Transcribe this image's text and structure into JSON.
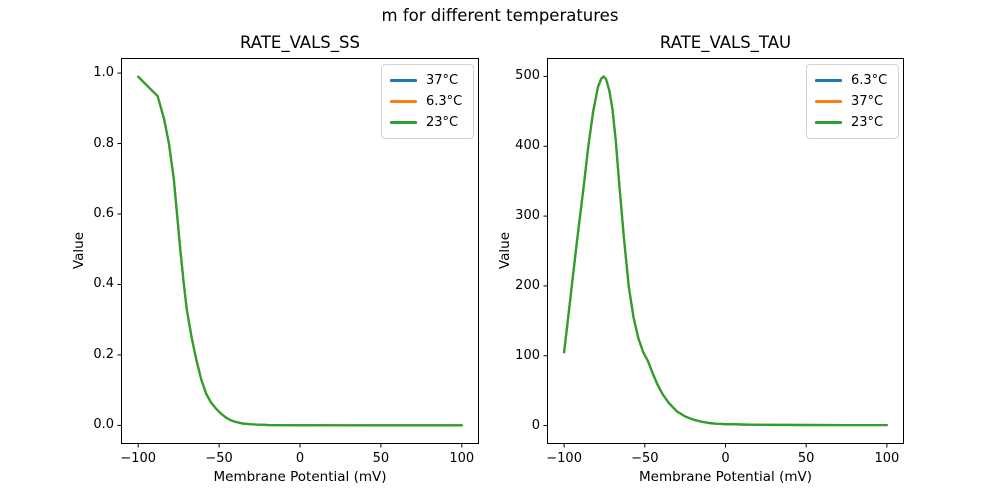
{
  "suptitle": "m for different temperatures",
  "chart_data": [
    {
      "type": "line",
      "title": "RATE_VALS_SS",
      "xlabel": "Membrane Potential (mV)",
      "ylabel": "Value",
      "xlim": [
        -110,
        110
      ],
      "ylim": [
        -0.05,
        1.04
      ],
      "grid": false,
      "legend_position": "upper right",
      "xticks": [
        -100,
        -50,
        0,
        50,
        100
      ],
      "xtick_labels": [
        "−100",
        "−50",
        "0",
        "50",
        "100"
      ],
      "yticks": [
        0.0,
        0.2,
        0.4,
        0.6,
        0.8,
        1.0
      ],
      "ytick_labels": [
        "0.0",
        "0.2",
        "0.4",
        "0.6",
        "0.8",
        "1.0"
      ],
      "note": "All three temperature curves overlap exactly; only the last-drawn series (23°C, green) is visible.",
      "x": [
        -100,
        -94,
        -88,
        -84,
        -81,
        -78,
        -76,
        -74,
        -72,
        -70,
        -67,
        -64,
        -61,
        -58,
        -55,
        -52,
        -49,
        -46,
        -43,
        -40,
        -35,
        -30,
        -25,
        -20,
        -10,
        0,
        25,
        50,
        75,
        100
      ],
      "series": [
        {
          "name": "37°C",
          "color": "#1f77b4",
          "values": [
            0.99,
            0.962,
            0.935,
            0.87,
            0.8,
            0.7,
            0.6,
            0.5,
            0.41,
            0.33,
            0.25,
            0.185,
            0.13,
            0.09,
            0.065,
            0.048,
            0.034,
            0.023,
            0.015,
            0.01,
            0.005,
            0.003,
            0.002,
            0.001,
            0.0005,
            0.0003,
            0.0002,
            0.0001,
            0.0001,
            0.0001
          ]
        },
        {
          "name": "6.3°C",
          "color": "#ff7f0e",
          "values": [
            0.99,
            0.962,
            0.935,
            0.87,
            0.8,
            0.7,
            0.6,
            0.5,
            0.41,
            0.33,
            0.25,
            0.185,
            0.13,
            0.09,
            0.065,
            0.048,
            0.034,
            0.023,
            0.015,
            0.01,
            0.005,
            0.003,
            0.002,
            0.001,
            0.0005,
            0.0003,
            0.0002,
            0.0001,
            0.0001,
            0.0001
          ]
        },
        {
          "name": "23°C",
          "color": "#2ca02c",
          "values": [
            0.99,
            0.962,
            0.935,
            0.87,
            0.8,
            0.7,
            0.6,
            0.5,
            0.41,
            0.33,
            0.25,
            0.185,
            0.13,
            0.09,
            0.065,
            0.048,
            0.034,
            0.023,
            0.015,
            0.01,
            0.005,
            0.003,
            0.002,
            0.001,
            0.0005,
            0.0003,
            0.0002,
            0.0001,
            0.0001,
            0.0001
          ]
        }
      ],
      "legend": [
        {
          "label": "37°C",
          "color": "#1f77b4"
        },
        {
          "label": "6.3°C",
          "color": "#ff7f0e"
        },
        {
          "label": "23°C",
          "color": "#2ca02c"
        }
      ]
    },
    {
      "type": "line",
      "title": "RATE_VALS_TAU",
      "xlabel": "Membrane Potential (mV)",
      "ylabel": "Value",
      "xlim": [
        -110,
        110
      ],
      "ylim": [
        -25,
        525
      ],
      "grid": false,
      "legend_position": "upper right",
      "xticks": [
        -100,
        -50,
        0,
        50,
        100
      ],
      "xtick_labels": [
        "−100",
        "−50",
        "0",
        "50",
        "100"
      ],
      "yticks": [
        0,
        100,
        200,
        300,
        400,
        500
      ],
      "ytick_labels": [
        "0",
        "100",
        "200",
        "300",
        "400",
        "500"
      ],
      "note": "All three temperature curves overlap exactly; only the last-drawn series (23°C, green) is visible. Peak ~500 at about −76 mV.",
      "x": [
        -100,
        -96,
        -92,
        -88,
        -85,
        -82,
        -79,
        -77,
        -75.5,
        -74,
        -72,
        -70,
        -68,
        -66,
        -63,
        -60,
        -57,
        -54,
        -51,
        -48,
        -45,
        -42,
        -39,
        -35,
        -30,
        -25,
        -20,
        -15,
        -10,
        -5,
        0,
        10,
        25,
        50,
        75,
        100
      ],
      "series": [
        {
          "name": "6.3°C",
          "color": "#1f77b4",
          "values": [
            105,
            185,
            265,
            340,
            400,
            450,
            485,
            497,
            500,
            496,
            480,
            452,
            408,
            350,
            270,
            200,
            155,
            125,
            105,
            92,
            74,
            58,
            45,
            32,
            20,
            13,
            8.5,
            5.5,
            3.5,
            2.5,
            2,
            1.5,
            1,
            0.8,
            0.7,
            0.7
          ]
        },
        {
          "name": "37°C",
          "color": "#ff7f0e",
          "values": [
            105,
            185,
            265,
            340,
            400,
            450,
            485,
            497,
            500,
            496,
            480,
            452,
            408,
            350,
            270,
            200,
            155,
            125,
            105,
            92,
            74,
            58,
            45,
            32,
            20,
            13,
            8.5,
            5.5,
            3.5,
            2.5,
            2,
            1.5,
            1,
            0.8,
            0.7,
            0.7
          ]
        },
        {
          "name": "23°C",
          "color": "#2ca02c",
          "values": [
            105,
            185,
            265,
            340,
            400,
            450,
            485,
            497,
            500,
            496,
            480,
            452,
            408,
            350,
            270,
            200,
            155,
            125,
            105,
            92,
            74,
            58,
            45,
            32,
            20,
            13,
            8.5,
            5.5,
            3.5,
            2.5,
            2,
            1.5,
            1,
            0.8,
            0.7,
            0.7
          ]
        }
      ],
      "legend": [
        {
          "label": "6.3°C",
          "color": "#1f77b4"
        },
        {
          "label": "37°C",
          "color": "#ff7f0e"
        },
        {
          "label": "23°C",
          "color": "#2ca02c"
        }
      ]
    }
  ]
}
